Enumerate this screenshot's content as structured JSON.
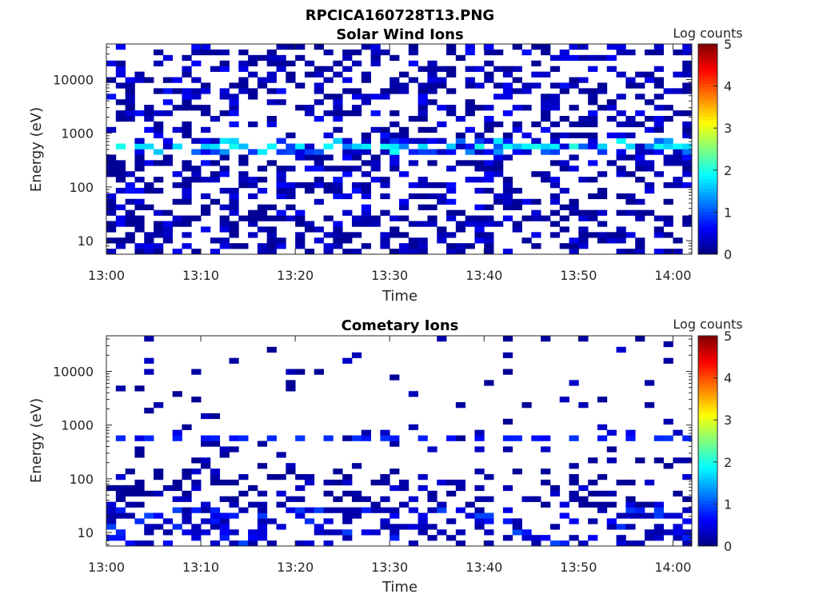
{
  "figure": {
    "title": "RPCICA160728T13.PNG"
  },
  "colorbar": {
    "label": "Log counts",
    "range": [
      0,
      5
    ],
    "ticks": [
      "0",
      "1",
      "2",
      "3",
      "4",
      "5"
    ],
    "colormap": "jet"
  },
  "chart_data": [
    {
      "type": "heatmap",
      "title": "Solar Wind Ions",
      "xlabel": "Time",
      "ylabel": "Energy (eV)",
      "xticks": [
        "13:00",
        "13:10",
        "13:20",
        "13:30",
        "13:40",
        "13:50",
        "14:00"
      ],
      "xtick_minutes": [
        0,
        10,
        20,
        30,
        40,
        50,
        60
      ],
      "xlim_minutes": [
        0,
        62
      ],
      "yscale": "log",
      "ylim": [
        5.6,
        46000
      ],
      "yticks": [
        "10",
        "100",
        "1000",
        "10000"
      ],
      "ytick_values": [
        10,
        100,
        1000,
        10000
      ],
      "grid": false,
      "time_bins": 62,
      "energy_bins": 38,
      "bands": [
        {
          "energy_range": [
            5.6,
            30
          ],
          "log_counts": [
            0.1,
            0.6
          ],
          "fill_fraction": 0.45
        },
        {
          "energy_range": [
            30,
            130
          ],
          "log_counts": [
            0.1,
            0.7
          ],
          "fill_fraction": 0.35
        },
        {
          "energy_range": [
            130,
            450
          ],
          "log_counts": [
            0.1,
            0.7
          ],
          "fill_fraction": 0.45
        },
        {
          "energy_range": [
            450,
            800
          ],
          "log_counts": [
            0.3,
            2.0
          ],
          "fill_fraction": 0.55
        },
        {
          "energy_range": [
            800,
            46000
          ],
          "log_counts": [
            0.1,
            0.7
          ],
          "fill_fraction": 0.38
        }
      ],
      "hotspots": {
        "energy": 620,
        "log_counts": 1.9,
        "period_minutes": 3.2,
        "start_minute": 1.3
      }
    },
    {
      "type": "heatmap",
      "title": "Cometary Ions",
      "xlabel": "Time",
      "ylabel": "Energy (eV)",
      "xticks": [
        "13:00",
        "13:10",
        "13:20",
        "13:30",
        "13:40",
        "13:50",
        "14:00"
      ],
      "xtick_minutes": [
        0,
        10,
        20,
        30,
        40,
        50,
        60
      ],
      "xlim_minutes": [
        0,
        62
      ],
      "yscale": "log",
      "ylim": [
        5.6,
        46000
      ],
      "yticks": [
        "10",
        "100",
        "1000",
        "10000"
      ],
      "ytick_values": [
        10,
        100,
        1000,
        10000
      ],
      "grid": false,
      "time_bins": 62,
      "energy_bins": 38,
      "bands": [
        {
          "energy_range": [
            5.6,
            30
          ],
          "log_counts": [
            0.2,
            1.0
          ],
          "fill_fraction": 0.42
        },
        {
          "energy_range": [
            30,
            130
          ],
          "log_counts": [
            0.1,
            0.5
          ],
          "fill_fraction": 0.3
        },
        {
          "energy_range": [
            130,
            450
          ],
          "log_counts": [
            0.1,
            0.4
          ],
          "fill_fraction": 0.14
        },
        {
          "energy_range": [
            450,
            800
          ],
          "log_counts": [
            0.1,
            0.6
          ],
          "fill_fraction": 0.06
        },
        {
          "energy_range": [
            800,
            46000
          ],
          "log_counts": [
            0.1,
            0.4
          ],
          "fill_fraction": 0.05
        }
      ],
      "hotspots": {
        "energy": 620,
        "log_counts": 0.8,
        "period_minutes": 3.2,
        "start_minute": 1.3
      }
    }
  ]
}
